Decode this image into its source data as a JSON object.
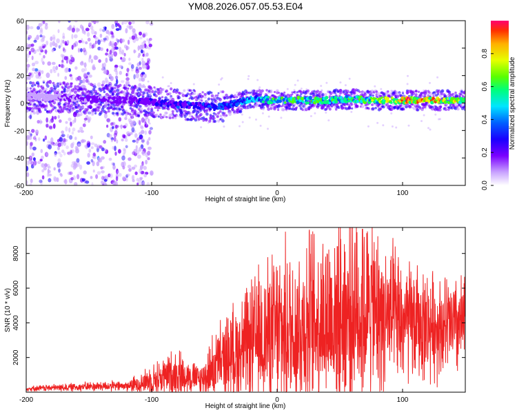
{
  "title": "YM08.2026.057.05.53.E04",
  "colors": {
    "snr_line": "#ee2222",
    "background": "#ffffff",
    "colormap": [
      "#ffffff",
      "#c9a3ff",
      "#7a00ff",
      "#1a00ff",
      "#0060ff",
      "#00e5ff",
      "#00ff7a",
      "#5aff00",
      "#e6ff00",
      "#ffb000",
      "#ff3000",
      "#ff0070"
    ]
  },
  "chart_data": [
    {
      "type": "heatmap",
      "name": "spectrogram",
      "xlabel": "Height of straight line (km)",
      "ylabel": "Frequency (Hz)",
      "xlim": [
        -200,
        150
      ],
      "ylim": [
        -60,
        60
      ],
      "xticks": [
        -200,
        -100,
        0,
        100
      ],
      "yticks": [
        -60,
        -40,
        -20,
        0,
        20,
        40,
        60
      ],
      "colorbar": {
        "label": "Normalized spectral amplitude",
        "range": [
          0,
          1
        ],
        "ticks": [
          "0.0",
          "0.2",
          "0.4",
          "0.6",
          "0.8"
        ]
      },
      "ridge": {
        "x": [
          -200,
          -170,
          -150,
          -120,
          -100,
          -80,
          -60,
          -50,
          -40,
          -20,
          0,
          20,
          40,
          60,
          80,
          100,
          120,
          150
        ],
        "frequency": [
          5,
          4,
          3,
          2,
          1,
          -1,
          -2,
          -3,
          -2,
          3,
          2,
          2,
          2,
          3,
          2,
          2,
          2,
          2
        ],
        "amplitude": [
          0.08,
          0.15,
          0.2,
          0.2,
          0.25,
          0.3,
          0.3,
          0.35,
          0.35,
          0.45,
          0.6,
          0.6,
          0.55,
          0.6,
          0.65,
          0.9,
          0.9,
          0.7
        ]
      },
      "scatter_region_end": -110
    },
    {
      "type": "line",
      "name": "snr",
      "xlabel": "Height of straight line (km)",
      "ylabel": "SNR (10 * v/v)",
      "xlim": [
        -200,
        150
      ],
      "ylim": [
        0,
        9500
      ],
      "xticks": [
        -200,
        -100,
        0,
        100
      ],
      "yticks": [
        2000,
        4000,
        6000,
        8000
      ],
      "series": [
        {
          "name": "SNR",
          "x": [
            -200,
            -180,
            -160,
            -140,
            -120,
            -110,
            -100,
            -90,
            -80,
            -70,
            -60,
            -50,
            -40,
            -30,
            -20,
            -10,
            0,
            10,
            20,
            30,
            40,
            50,
            60,
            70,
            80,
            90,
            100,
            110,
            120,
            130,
            140,
            150
          ],
          "y": [
            200,
            250,
            300,
            350,
            350,
            500,
            700,
            900,
            1100,
            900,
            700,
            1500,
            2000,
            2400,
            2800,
            3300,
            3400,
            3600,
            3900,
            4100,
            4300,
            4500,
            4700,
            4600,
            4400,
            4200,
            4000,
            3900,
            3900,
            3800,
            3800,
            3800
          ],
          "envelope": [
            150,
            200,
            250,
            300,
            300,
            600,
            900,
            1200,
            1500,
            1000,
            900,
            2000,
            2600,
            3100,
            3700,
            4300,
            4800,
            5000,
            5200,
            5400,
            5600,
            5800,
            5900,
            5600,
            5000,
            4400,
            3800,
            3400,
            3200,
            3000,
            3000,
            3000
          ],
          "peaks": [
            {
              "x": 68,
              "y": 9400
            },
            {
              "x": 48,
              "y": 8400
            },
            {
              "x": 62,
              "y": 8600
            },
            {
              "x": 35,
              "y": 7400
            },
            {
              "x": 75,
              "y": 7300
            }
          ]
        }
      ]
    }
  ]
}
